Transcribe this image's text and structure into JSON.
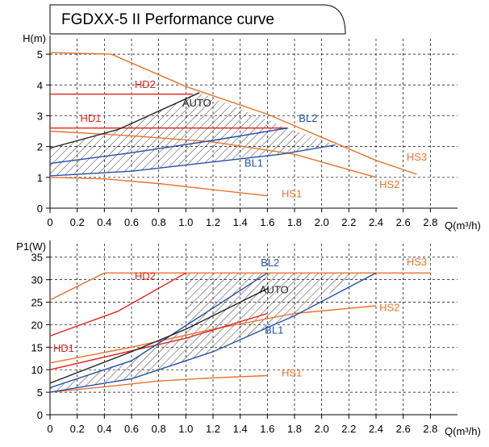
{
  "title": "FGDXX-5 II Performance curve",
  "colors": {
    "hs": "#e8732a",
    "hd": "#e0231c",
    "bl": "#2450a8",
    "auto": "#222222",
    "grid": "#000000"
  },
  "chart_data": [
    {
      "type": "line",
      "ylabel": "H(m)",
      "xlabel": "Q(m³/h)",
      "xlim": [
        0,
        3.0
      ],
      "ylim": [
        0,
        5.5
      ],
      "xticks": [
        0,
        0.2,
        0.4,
        0.6,
        0.8,
        1.0,
        1.2,
        1.4,
        1.6,
        1.8,
        2.0,
        2.2,
        2.4,
        2.6,
        2.8
      ],
      "xtick_labels": [
        "0",
        "0.2",
        "0.4",
        "0.6",
        "0.8",
        "1.0",
        "1.2",
        "1.4",
        "1.6",
        "1.8",
        "2.0",
        "2.2",
        "2.4",
        "2.6",
        "2.8"
      ],
      "yticks": [
        0,
        1,
        2,
        3,
        4,
        5
      ],
      "ytick_labels": [
        "0",
        "1",
        "2",
        "3",
        "4",
        "5"
      ],
      "grid": true,
      "series": [
        {
          "name": "HS3",
          "color": "hs",
          "points": [
            [
              0,
              5.05
            ],
            [
              0.45,
              5.0
            ],
            [
              1.0,
              3.95
            ],
            [
              1.6,
              3.05
            ],
            [
              2.0,
              2.3
            ],
            [
              2.4,
              1.55
            ],
            [
              2.7,
              1.1
            ]
          ],
          "label_at": [
            2.7,
            1.55
          ]
        },
        {
          "name": "HS2",
          "color": "hs",
          "points": [
            [
              0,
              2.5
            ],
            [
              0.6,
              2.35
            ],
            [
              1.2,
              2.15
            ],
            [
              1.8,
              1.75
            ],
            [
              2.4,
              1.0
            ]
          ],
          "label_at": [
            2.5,
            0.65
          ]
        },
        {
          "name": "HS1",
          "color": "hs",
          "points": [
            [
              0,
              1.0
            ],
            [
              0.4,
              0.95
            ],
            [
              0.8,
              0.8
            ],
            [
              1.2,
              0.6
            ],
            [
              1.6,
              0.4
            ]
          ],
          "label_at": [
            1.78,
            0.35
          ]
        },
        {
          "name": "HD2",
          "color": "hd",
          "points": [
            [
              0,
              3.7
            ],
            [
              1.05,
              3.7
            ]
          ],
          "label_at": [
            0.7,
            3.9
          ]
        },
        {
          "name": "HD1",
          "color": "hd",
          "points": [
            [
              0,
              2.6
            ],
            [
              1.75,
              2.6
            ]
          ],
          "label_at": [
            0.3,
            2.8
          ]
        },
        {
          "name": "BL2",
          "color": "bl",
          "points": [
            [
              0,
              1.45
            ],
            [
              0.6,
              1.8
            ],
            [
              1.2,
              2.2
            ],
            [
              1.75,
              2.6
            ]
          ],
          "label_at": [
            1.9,
            2.8
          ]
        },
        {
          "name": "BL1",
          "color": "bl",
          "points": [
            [
              0,
              1.05
            ],
            [
              0.6,
              1.2
            ],
            [
              1.2,
              1.5
            ],
            [
              1.7,
              1.75
            ],
            [
              2.1,
              2.05
            ]
          ],
          "label_at": [
            1.5,
            1.35
          ]
        },
        {
          "name": "AUTO",
          "color": "auto",
          "points": [
            [
              0,
              1.95
            ],
            [
              0.5,
              2.55
            ],
            [
              1.1,
              3.75
            ]
          ],
          "label_at": [
            1.08,
            3.3
          ]
        }
      ],
      "hatched_region": [
        [
          0,
          1.05
        ],
        [
          0,
          1.95
        ],
        [
          0.5,
          2.55
        ],
        [
          1.1,
          3.75
        ],
        [
          1.75,
          2.6
        ],
        [
          2.1,
          2.05
        ],
        [
          1.7,
          1.75
        ],
        [
          1.2,
          1.5
        ],
        [
          0.6,
          1.2
        ]
      ]
    },
    {
      "type": "line",
      "ylabel": "P1(W)",
      "xlabel": "Q(m³/h)",
      "xlim": [
        0,
        3.0
      ],
      "ylim": [
        0,
        38
      ],
      "xticks": [
        0,
        0.2,
        0.4,
        0.6,
        0.8,
        1.0,
        1.2,
        1.4,
        1.6,
        1.8,
        2.0,
        2.2,
        2.4,
        2.6,
        2.8
      ],
      "xtick_labels": [
        "0",
        "0.2",
        "0.4",
        "0.6",
        "0.8",
        "1.0",
        "1.2",
        "1.4",
        "1.6",
        "1.8",
        "2.0",
        "2.2",
        "2.4",
        "2.6",
        "2.8"
      ],
      "yticks": [
        0,
        5,
        10,
        15,
        20,
        25,
        30,
        35
      ],
      "ytick_labels": [
        "0",
        "5",
        "10",
        "15",
        "20",
        "25",
        "30",
        "35"
      ],
      "grid": true,
      "series": [
        {
          "name": "HS3",
          "color": "hs",
          "points": [
            [
              0,
              25.5
            ],
            [
              0.4,
              31.5
            ],
            [
              2.8,
              31.5
            ]
          ],
          "label_at": [
            2.7,
            33.2
          ]
        },
        {
          "name": "HS2",
          "color": "hs",
          "points": [
            [
              0,
              11.5
            ],
            [
              0.6,
              15.0
            ],
            [
              1.2,
              19.0
            ],
            [
              1.8,
              22.5
            ],
            [
              2.4,
              24.2
            ]
          ],
          "label_at": [
            2.5,
            23.0
          ]
        },
        {
          "name": "HS1",
          "color": "hs",
          "points": [
            [
              0,
              5.0
            ],
            [
              0.4,
              6.2
            ],
            [
              0.8,
              7.5
            ],
            [
              1.2,
              8.2
            ],
            [
              1.6,
              8.7
            ]
          ],
          "label_at": [
            1.78,
            8.5
          ]
        },
        {
          "name": "HD2",
          "color": "hd",
          "points": [
            [
              0,
              17.5
            ],
            [
              0.5,
              23.0
            ],
            [
              1.0,
              31.5
            ]
          ],
          "label_at": [
            0.7,
            30.0
          ]
        },
        {
          "name": "HD1",
          "color": "hd",
          "points": [
            [
              0,
              10.0
            ],
            [
              1.0,
              17.0
            ],
            [
              1.6,
              22.5
            ]
          ],
          "label_at": [
            0.1,
            14.0
          ]
        },
        {
          "name": "BL2",
          "color": "bl",
          "points": [
            [
              0,
              6.0
            ],
            [
              0.6,
              12.0
            ],
            [
              1.6,
              31.5
            ]
          ],
          "label_at": [
            1.62,
            33.0
          ]
        },
        {
          "name": "BL1",
          "color": "bl",
          "points": [
            [
              0,
              5.0
            ],
            [
              0.6,
              8.0
            ],
            [
              1.2,
              14.0
            ],
            [
              1.8,
              22.0
            ],
            [
              2.4,
              31.5
            ]
          ],
          "label_at": [
            1.65,
            18.0
          ]
        },
        {
          "name": "AUTO",
          "color": "auto",
          "points": [
            [
              0,
              7.0
            ],
            [
              0.6,
              14.0
            ],
            [
              1.0,
              19.0
            ],
            [
              1.6,
              28.0
            ]
          ],
          "label_at": [
            1.65,
            27.0
          ]
        }
      ],
      "hatched_region": [
        [
          0,
          5.0
        ],
        [
          0,
          6.0
        ],
        [
          0.6,
          12.0
        ],
        [
          1.0,
          19.0
        ],
        [
          1.0,
          31.5
        ],
        [
          2.3,
          31.5
        ],
        [
          1.8,
          22.0
        ],
        [
          1.2,
          14.0
        ],
        [
          0.6,
          8.0
        ]
      ]
    }
  ]
}
